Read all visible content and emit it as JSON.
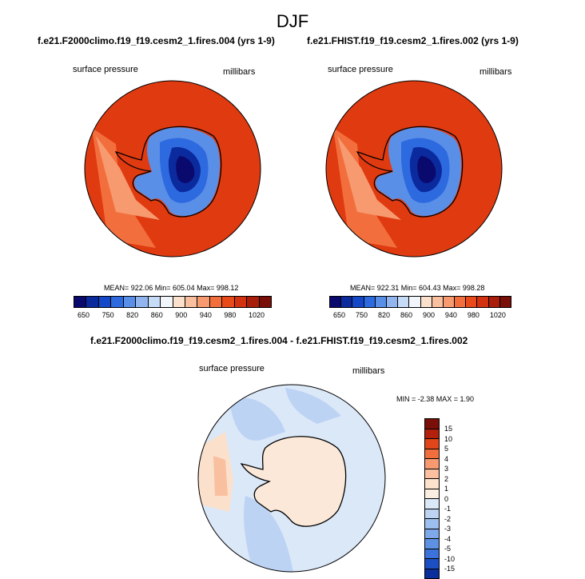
{
  "figure": {
    "title": "DJF"
  },
  "panels": [
    {
      "title": "f.e21.F2000climo.f19_f19.cesm2_1.fires.004 (yrs 1-9)",
      "variable": "surface pressure",
      "units": "millibars",
      "stats": {
        "mean": "922.06",
        "min": "605.04",
        "max": "998.12",
        "label": "MEAN= 922.06  Min= 605.04  Max= 998.12"
      }
    },
    {
      "title": "f.e21.FHIST.f19_f19.cesm2_1.fires.002 (yrs 1-9)",
      "variable": "surface pressure",
      "units": "millibars",
      "stats": {
        "mean": "922.31",
        "min": "604.43",
        "max": "998.28",
        "label": "MEAN= 922.31  Min= 604.43  Max= 998.28"
      }
    }
  ],
  "diff_panel": {
    "title": "f.e21.F2000climo.f19_f19.cesm2_1.fires.004 - f.e21.FHIST.f19_f19.cesm2_1.fires.002",
    "variable": "surface pressure",
    "units": "millibars",
    "stats_label": "MIN =  -2.38 MAX =   1.90",
    "min": -2.38,
    "max": 1.9
  },
  "colorbar_abs": {
    "colors": [
      "#0a0a6e",
      "#0b2a9e",
      "#1548c9",
      "#2d6ae0",
      "#5a8fe8",
      "#93b5ef",
      "#c6dbf6",
      "#f2f6fb",
      "#fbe0cc",
      "#f9c0a0",
      "#f79a70",
      "#f26f3d",
      "#e84a1a",
      "#d23210",
      "#a81e0a",
      "#7a0e08"
    ],
    "tick_labels": [
      "650",
      "750",
      "820",
      "860",
      "900",
      "940",
      "980",
      "1020"
    ]
  },
  "colorbar_diff": {
    "colors": [
      "#7a0e08",
      "#b3200c",
      "#e0461a",
      "#f26f3d",
      "#f79a70",
      "#fac09f",
      "#fde2cc",
      "#fbefe2",
      "#dbe8f8",
      "#bcd3f4",
      "#9dbff0",
      "#7ea8ea",
      "#5f91e3",
      "#3b72db",
      "#1c4fc4",
      "#0a2e9c"
    ],
    "tick_labels": [
      "15",
      "10",
      "5",
      "4",
      "3",
      "2",
      "1",
      "0",
      "-1",
      "-2",
      "-3",
      "-4",
      "-5",
      "-10",
      "-15"
    ]
  }
}
